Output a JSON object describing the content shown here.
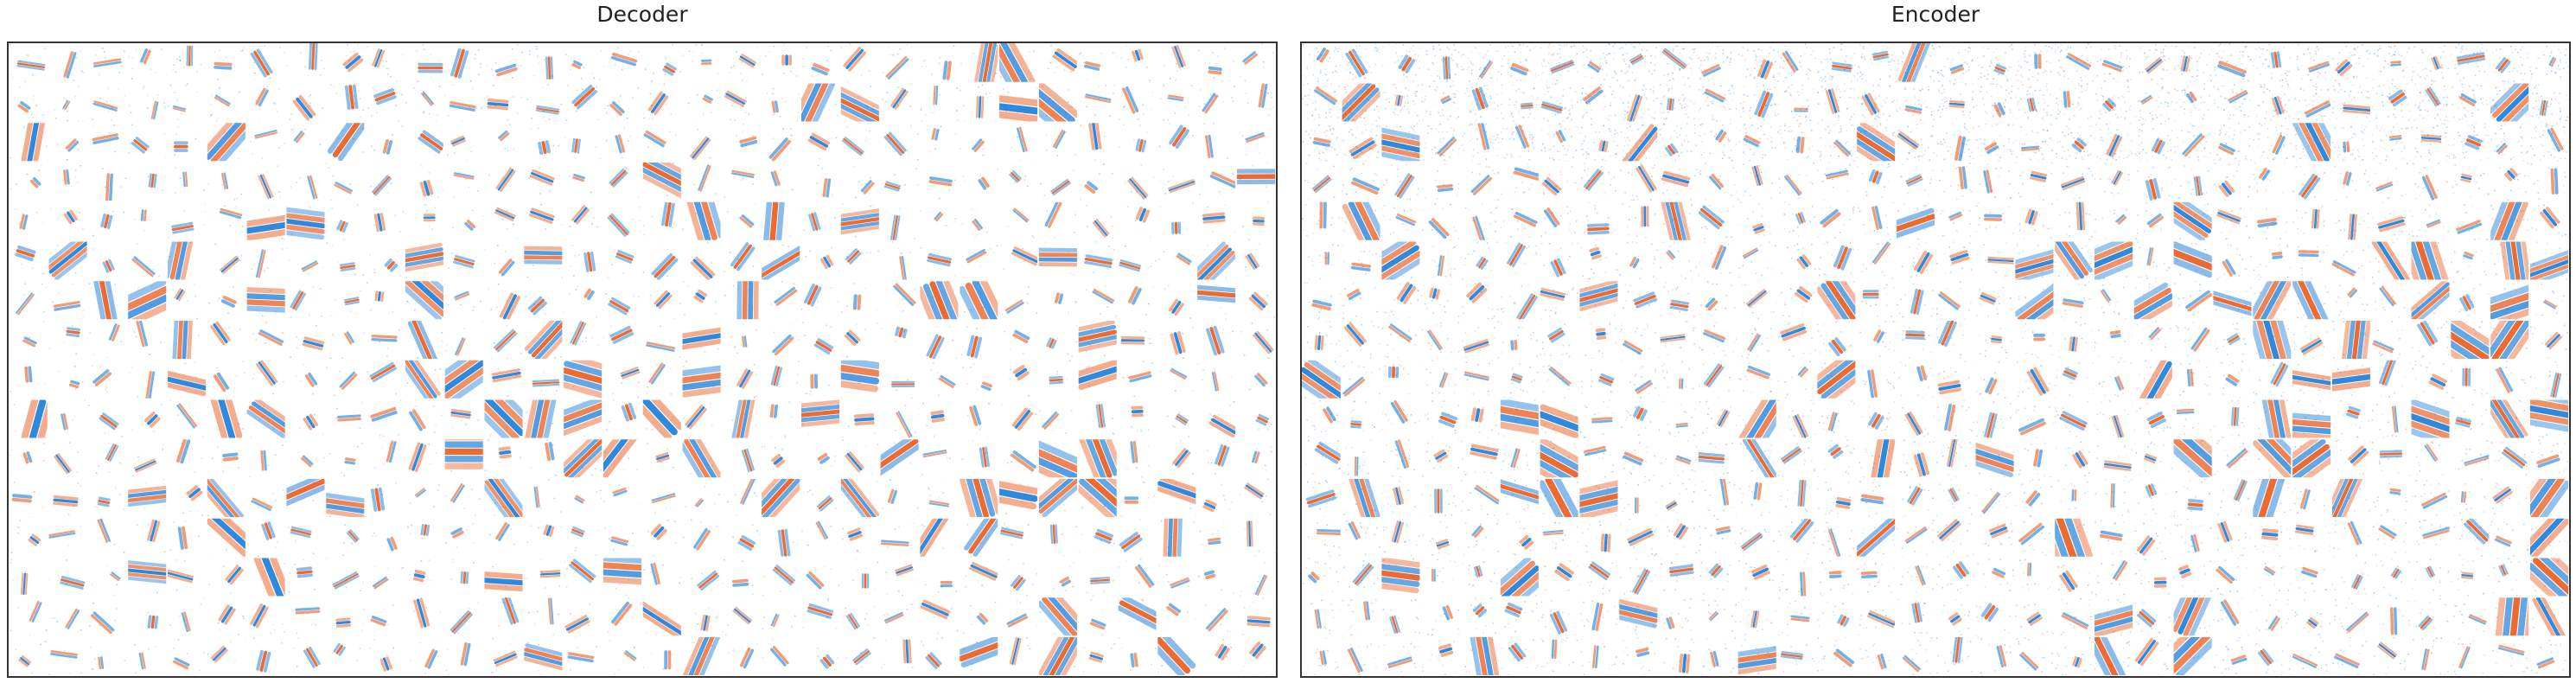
{
  "panels": [
    {
      "id": "decoder",
      "title": "Decoder"
    },
    {
      "id": "encoder",
      "title": "Encoder"
    }
  ],
  "grid": {
    "rows": 16,
    "cols": 32
  },
  "colors": {
    "positive": "#e8510e",
    "negative": "#0a74d6",
    "background": "#ffffff",
    "frame": "#333333"
  }
}
